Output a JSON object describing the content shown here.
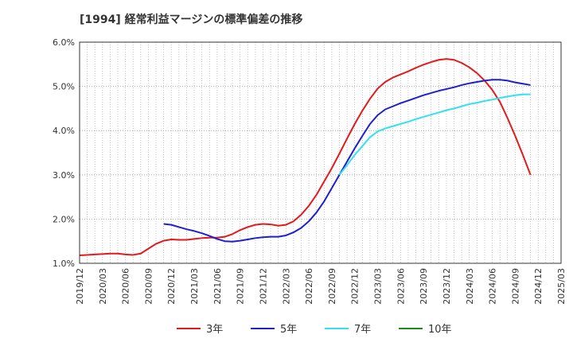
{
  "chart_data": {
    "type": "line",
    "title": "[1994]  経常利益マージンの標準偏差の推移",
    "xlabel": "",
    "ylabel": "",
    "y_ticks": [
      "6.0%",
      "5.0%",
      "4.0%",
      "3.0%",
      "2.0%",
      "1.0%"
    ],
    "ylim": [
      1.0,
      6.0
    ],
    "x_ticks": [
      "2019/12",
      "2020/03",
      "2020/06",
      "2020/09",
      "2020/12",
      "2021/03",
      "2021/06",
      "2021/09",
      "2021/12",
      "2022/03",
      "2022/06",
      "2022/09",
      "2022/12",
      "2023/03",
      "2023/06",
      "2023/09",
      "2023/12",
      "2024/03",
      "2024/06",
      "2024/09",
      "2024/12",
      "2025/03"
    ],
    "grid": true,
    "legend_position": "bottom",
    "series": [
      {
        "name": "3年",
        "color": "#e31a1c",
        "values": [
          [
            "2019/12",
            1.18
          ],
          [
            "2020/01",
            1.19
          ],
          [
            "2020/02",
            1.2
          ],
          [
            "2020/03",
            1.21
          ],
          [
            "2020/04",
            1.22
          ],
          [
            "2020/05",
            1.22
          ],
          [
            "2020/06",
            1.2
          ],
          [
            "2020/07",
            1.19
          ],
          [
            "2020/08",
            1.22
          ],
          [
            "2020/09",
            1.33
          ],
          [
            "2020/10",
            1.44
          ],
          [
            "2020/11",
            1.51
          ],
          [
            "2020/12",
            1.54
          ],
          [
            "2021/01",
            1.53
          ],
          [
            "2021/02",
            1.53
          ],
          [
            "2021/03",
            1.55
          ],
          [
            "2021/04",
            1.57
          ],
          [
            "2021/05",
            1.58
          ],
          [
            "2021/06",
            1.58
          ],
          [
            "2021/07",
            1.6
          ],
          [
            "2021/08",
            1.66
          ],
          [
            "2021/09",
            1.75
          ],
          [
            "2021/10",
            1.82
          ],
          [
            "2021/11",
            1.87
          ],
          [
            "2021/12",
            1.89
          ],
          [
            "2022/01",
            1.88
          ],
          [
            "2022/02",
            1.85
          ],
          [
            "2022/03",
            1.87
          ],
          [
            "2022/04",
            1.95
          ],
          [
            "2022/05",
            2.1
          ],
          [
            "2022/06",
            2.3
          ],
          [
            "2022/07",
            2.55
          ],
          [
            "2022/08",
            2.85
          ],
          [
            "2022/09",
            3.15
          ],
          [
            "2022/10",
            3.48
          ],
          [
            "2022/11",
            3.82
          ],
          [
            "2022/12",
            4.15
          ],
          [
            "2023/01",
            4.45
          ],
          [
            "2023/02",
            4.72
          ],
          [
            "2023/03",
            4.95
          ],
          [
            "2023/04",
            5.1
          ],
          [
            "2023/05",
            5.2
          ],
          [
            "2023/06",
            5.27
          ],
          [
            "2023/07",
            5.34
          ],
          [
            "2023/08",
            5.42
          ],
          [
            "2023/09",
            5.49
          ],
          [
            "2023/10",
            5.55
          ],
          [
            "2023/11",
            5.6
          ],
          [
            "2023/12",
            5.62
          ],
          [
            "2024/01",
            5.6
          ],
          [
            "2024/02",
            5.53
          ],
          [
            "2024/03",
            5.43
          ],
          [
            "2024/04",
            5.3
          ],
          [
            "2024/05",
            5.13
          ],
          [
            "2024/06",
            4.92
          ],
          [
            "2024/07",
            4.65
          ],
          [
            "2024/08",
            4.28
          ],
          [
            "2024/09",
            3.88
          ],
          [
            "2024/10",
            3.45
          ],
          [
            "2024/11",
            3.0
          ]
        ]
      },
      {
        "name": "5年",
        "color": "#1f1fcf",
        "values": [
          [
            "2020/11",
            1.89
          ],
          [
            "2020/12",
            1.87
          ],
          [
            "2021/01",
            1.82
          ],
          [
            "2021/02",
            1.77
          ],
          [
            "2021/03",
            1.73
          ],
          [
            "2021/04",
            1.68
          ],
          [
            "2021/05",
            1.62
          ],
          [
            "2021/06",
            1.55
          ],
          [
            "2021/07",
            1.5
          ],
          [
            "2021/08",
            1.49
          ],
          [
            "2021/09",
            1.51
          ],
          [
            "2021/10",
            1.54
          ],
          [
            "2021/11",
            1.57
          ],
          [
            "2021/12",
            1.59
          ],
          [
            "2022/01",
            1.6
          ],
          [
            "2022/02",
            1.6
          ],
          [
            "2022/03",
            1.63
          ],
          [
            "2022/04",
            1.7
          ],
          [
            "2022/05",
            1.8
          ],
          [
            "2022/06",
            1.95
          ],
          [
            "2022/07",
            2.15
          ],
          [
            "2022/08",
            2.4
          ],
          [
            "2022/09",
            2.7
          ],
          [
            "2022/10",
            3.0
          ],
          [
            "2022/11",
            3.3
          ],
          [
            "2022/12",
            3.6
          ],
          [
            "2023/01",
            3.88
          ],
          [
            "2023/02",
            4.15
          ],
          [
            "2023/03",
            4.35
          ],
          [
            "2023/04",
            4.48
          ],
          [
            "2023/05",
            4.55
          ],
          [
            "2023/06",
            4.62
          ],
          [
            "2023/07",
            4.68
          ],
          [
            "2023/08",
            4.74
          ],
          [
            "2023/09",
            4.8
          ],
          [
            "2023/10",
            4.85
          ],
          [
            "2023/11",
            4.9
          ],
          [
            "2023/12",
            4.94
          ],
          [
            "2024/01",
            4.98
          ],
          [
            "2024/02",
            5.03
          ],
          [
            "2024/03",
            5.07
          ],
          [
            "2024/04",
            5.1
          ],
          [
            "2024/05",
            5.13
          ],
          [
            "2024/06",
            5.15
          ],
          [
            "2024/07",
            5.15
          ],
          [
            "2024/08",
            5.13
          ],
          [
            "2024/09",
            5.09
          ],
          [
            "2024/10",
            5.06
          ],
          [
            "2024/11",
            5.03
          ]
        ]
      },
      {
        "name": "7年",
        "color": "#33e0f0",
        "values": [
          [
            "2022/10",
            3.0
          ],
          [
            "2022/11",
            3.22
          ],
          [
            "2022/12",
            3.45
          ],
          [
            "2023/01",
            3.65
          ],
          [
            "2023/02",
            3.85
          ],
          [
            "2023/03",
            3.98
          ],
          [
            "2023/04",
            4.05
          ],
          [
            "2023/05",
            4.1
          ],
          [
            "2023/06",
            4.15
          ],
          [
            "2023/07",
            4.2
          ],
          [
            "2023/08",
            4.26
          ],
          [
            "2023/09",
            4.31
          ],
          [
            "2023/10",
            4.36
          ],
          [
            "2023/11",
            4.41
          ],
          [
            "2023/12",
            4.46
          ],
          [
            "2024/01",
            4.5
          ],
          [
            "2024/02",
            4.55
          ],
          [
            "2024/03",
            4.6
          ],
          [
            "2024/04",
            4.63
          ],
          [
            "2024/05",
            4.67
          ],
          [
            "2024/06",
            4.7
          ],
          [
            "2024/07",
            4.74
          ],
          [
            "2024/08",
            4.77
          ],
          [
            "2024/09",
            4.8
          ],
          [
            "2024/10",
            4.82
          ],
          [
            "2024/11",
            4.82
          ]
        ]
      },
      {
        "name": "10年",
        "color": "#1a8a1a",
        "values": []
      }
    ]
  }
}
